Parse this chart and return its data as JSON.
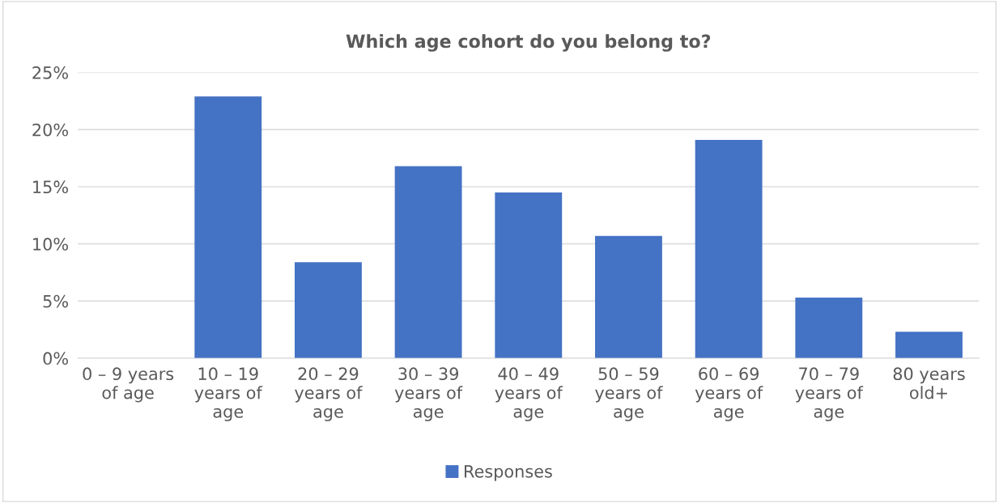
{
  "chart_data": {
    "type": "bar",
    "title": "Which age cohort do you belong to?",
    "categories": [
      "0 – 9 years\nof age",
      "10 – 19\nyears of\nage",
      "20 – 29\nyears of\nage",
      "30 – 39\nyears of\nage",
      "40 – 49\nyears of\nage",
      "50 – 59\nyears of\nage",
      "60 – 69\nyears of\nage",
      "70 – 79\nyears of\nage",
      "80 years\nold+"
    ],
    "series": [
      {
        "name": "Responses",
        "color": "#4472c4",
        "values": [
          0,
          22.9,
          8.4,
          16.8,
          14.5,
          10.7,
          19.1,
          5.3,
          2.3
        ]
      }
    ],
    "ylim": [
      0,
      25
    ],
    "yticks": [
      {
        "value": 0,
        "label": "0%"
      },
      {
        "value": 5,
        "label": "5%"
      },
      {
        "value": 10,
        "label": "10%"
      },
      {
        "value": 15,
        "label": "15%"
      },
      {
        "value": 20,
        "label": "20%"
      },
      {
        "value": 25,
        "label": "25%"
      }
    ],
    "grid": "y",
    "legend": "bottom"
  }
}
